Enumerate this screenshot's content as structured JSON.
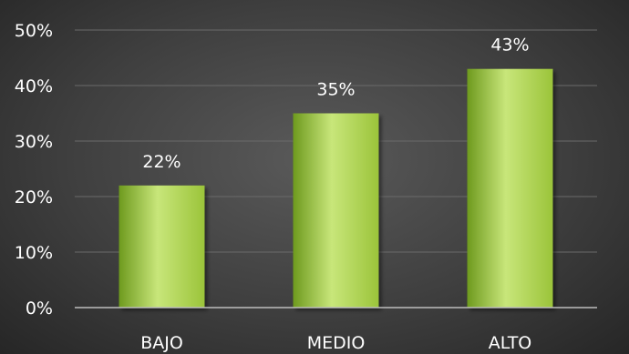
{
  "chart_data": {
    "type": "bar",
    "categories": [
      "BAJO",
      "MEDIO",
      "ALTO"
    ],
    "values": [
      22,
      35,
      43
    ],
    "data_labels": [
      "22%",
      "35%",
      "43%"
    ],
    "title": "",
    "xlabel": "",
    "ylabel": "",
    "ylim": [
      0,
      50
    ],
    "y_ticks": [
      0,
      10,
      20,
      30,
      40,
      50
    ],
    "y_tick_labels": [
      "0%",
      "10%",
      "20%",
      "30%",
      "40%",
      "50%"
    ],
    "grid": true,
    "legend": "none"
  },
  "colors": {
    "bar_light": "#c8e67a",
    "bar_mid": "#9bc43a",
    "bar_dark": "#6e9a1e",
    "background": "#3f3f3f",
    "gridline": "#6a6a6a",
    "axis": "#bdbdbd",
    "text": "#ffffff"
  }
}
